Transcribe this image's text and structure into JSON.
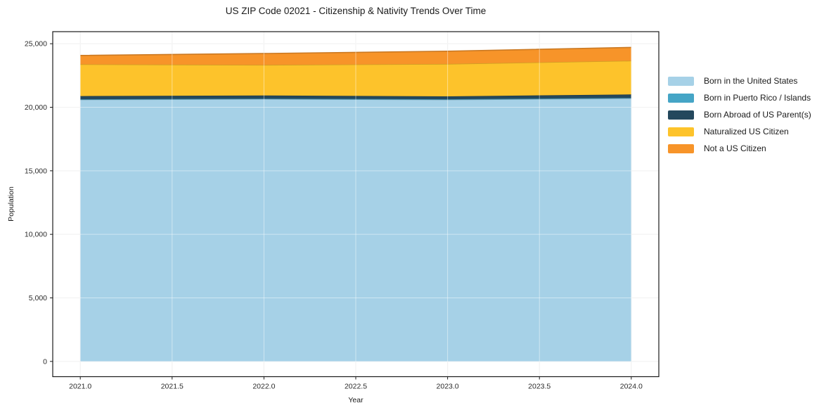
{
  "title": "US ZIP Code 02021 - Citizenship & Nativity Trends Over Time",
  "chart_data": {
    "type": "area",
    "stacked": true,
    "title": "US ZIP Code 02021 - Citizenship & Nativity Trends Over Time",
    "xlabel": "Year",
    "ylabel": "Population",
    "x": [
      2021,
      2022,
      2023,
      2024
    ],
    "series": [
      {
        "name": "Born in the United States",
        "color": "#a6d1e7",
        "values": [
          20600,
          20650,
          20600,
          20700
        ]
      },
      {
        "name": "Born in Puerto Rico / Islands",
        "color": "#45a5c6",
        "values": [
          30,
          30,
          30,
          40
        ]
      },
      {
        "name": "Born Abroad of US Parent(s)",
        "color": "#24485d",
        "values": [
          250,
          250,
          230,
          270
        ]
      },
      {
        "name": "Naturalized US Citizen",
        "color": "#fdc32b",
        "values": [
          2500,
          2400,
          2550,
          2650
        ]
      },
      {
        "name": "Not a US Citizen",
        "color": "#f79429",
        "values": [
          700,
          900,
          1000,
          1050
        ]
      }
    ],
    "xlim": [
      2020.85,
      2024.15
    ],
    "ylim": [
      -1200,
      25950
    ],
    "xticks": [
      {
        "v": 2021.0,
        "label": "2021.0"
      },
      {
        "v": 2021.5,
        "label": "2021.5"
      },
      {
        "v": 2022.0,
        "label": "2022.0"
      },
      {
        "v": 2022.5,
        "label": "2022.5"
      },
      {
        "v": 2023.0,
        "label": "2023.0"
      },
      {
        "v": 2023.5,
        "label": "2023.5"
      },
      {
        "v": 2024.0,
        "label": "2024.0"
      }
    ],
    "yticks": [
      {
        "v": 0,
        "label": "0"
      },
      {
        "v": 5000,
        "label": "5,000"
      },
      {
        "v": 10000,
        "label": "10,000"
      },
      {
        "v": 15000,
        "label": "15,000"
      },
      {
        "v": 20000,
        "label": "20,000"
      },
      {
        "v": 25000,
        "label": "25,000"
      }
    ],
    "grid": true,
    "legend_position": "right-outside",
    "colors": {
      "grid": "#e7e7e7",
      "grid_overlay": "rgba(255,255,255,0.45)",
      "spine": "#1a1a1a",
      "tick_text": "#2b2b2b"
    }
  }
}
